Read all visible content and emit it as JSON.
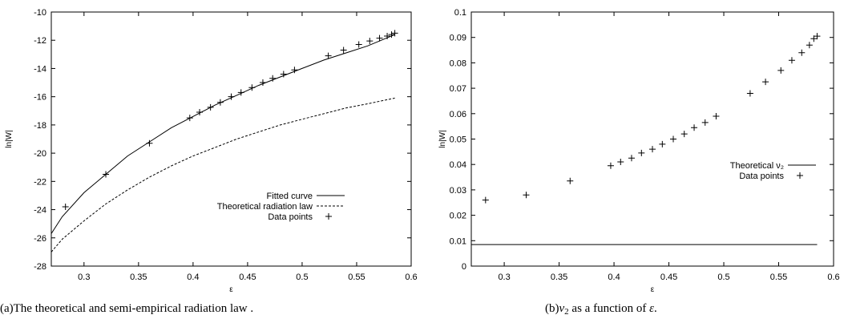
{
  "chart_data": [
    {
      "type": "line",
      "title": "",
      "xlabel": "ε",
      "ylabel": "ln|W|",
      "xlim": [
        0.27,
        0.6
      ],
      "ylim": [
        -28,
        -10
      ],
      "xticks": [
        "0.3",
        "0.35",
        "0.4",
        "0.45",
        "0.5",
        "0.55",
        "0.6"
      ],
      "yticks": [
        "-28",
        "-26",
        "-24",
        "-22",
        "-20",
        "-18",
        "-16",
        "-14",
        "-12",
        "-10"
      ],
      "grid": false,
      "legend": "bottom-right",
      "series": [
        {
          "name": "Fitted curve",
          "style": "solid",
          "x": [
            0.27,
            0.28,
            0.3,
            0.32,
            0.34,
            0.36,
            0.38,
            0.4,
            0.42,
            0.44,
            0.46,
            0.48,
            0.5,
            0.52,
            0.54,
            0.56,
            0.585
          ],
          "y": [
            -25.7,
            -24.5,
            -22.8,
            -21.5,
            -20.2,
            -19.2,
            -18.2,
            -17.4,
            -16.6,
            -15.9,
            -15.2,
            -14.6,
            -14.0,
            -13.4,
            -12.9,
            -12.4,
            -11.6
          ]
        },
        {
          "name": "Theoretical radiation law",
          "style": "dashed",
          "x": [
            0.27,
            0.28,
            0.3,
            0.32,
            0.34,
            0.36,
            0.38,
            0.4,
            0.42,
            0.44,
            0.46,
            0.48,
            0.5,
            0.52,
            0.54,
            0.56,
            0.585
          ],
          "y": [
            -27.0,
            -26.1,
            -24.8,
            -23.6,
            -22.6,
            -21.7,
            -20.9,
            -20.2,
            -19.6,
            -19.0,
            -18.5,
            -18.0,
            -17.6,
            -17.2,
            -16.8,
            -16.5,
            -16.1
          ]
        },
        {
          "name": "Data points",
          "style": "points",
          "x": [
            0.283,
            0.32,
            0.36,
            0.397,
            0.406,
            0.416,
            0.425,
            0.435,
            0.444,
            0.454,
            0.464,
            0.473,
            0.483,
            0.493,
            0.524,
            0.538,
            0.552,
            0.562,
            0.571,
            0.578,
            0.582,
            0.585
          ],
          "y": [
            -23.8,
            -21.5,
            -19.3,
            -17.5,
            -17.1,
            -16.75,
            -16.4,
            -16.0,
            -15.7,
            -15.35,
            -15.0,
            -14.7,
            -14.4,
            -14.1,
            -13.1,
            -12.7,
            -12.3,
            -12.05,
            -11.85,
            -11.7,
            -11.6,
            -11.5
          ]
        }
      ]
    },
    {
      "type": "scatter",
      "title": "",
      "xlabel": "ε",
      "ylabel": "ln|W|",
      "xlim": [
        0.27,
        0.6
      ],
      "ylim": [
        0,
        0.1
      ],
      "xticks": [
        "0.3",
        "0.35",
        "0.4",
        "0.45",
        "0.5",
        "0.55",
        "0.6"
      ],
      "yticks": [
        "0",
        "0.01",
        "0.02",
        "0.03",
        "0.04",
        "0.05",
        "0.06",
        "0.07",
        "0.08",
        "0.09",
        "0.1"
      ],
      "grid": false,
      "legend": "center-right",
      "series": [
        {
          "name": "Theoretical ν₂",
          "style": "solid",
          "x": [
            0.27,
            0.585
          ],
          "y": [
            0.0085,
            0.0085
          ]
        },
        {
          "name": "Data points",
          "style": "points",
          "x": [
            0.283,
            0.32,
            0.36,
            0.397,
            0.406,
            0.416,
            0.425,
            0.435,
            0.444,
            0.454,
            0.464,
            0.473,
            0.483,
            0.493,
            0.524,
            0.538,
            0.552,
            0.562,
            0.571,
            0.578,
            0.582,
            0.585
          ],
          "y": [
            0.026,
            0.028,
            0.0335,
            0.0395,
            0.041,
            0.0425,
            0.0445,
            0.046,
            0.048,
            0.05,
            0.052,
            0.0545,
            0.0565,
            0.059,
            0.068,
            0.0725,
            0.077,
            0.081,
            0.084,
            0.087,
            0.0895,
            0.0905
          ]
        }
      ]
    }
  ],
  "captions": {
    "a": "(a)The theoretical and semi-empirical radiation law .",
    "b_prefix": "(b)",
    "b_symbol": "ν",
    "b_sub": "2",
    "b_suffix": " as a function of ",
    "b_eps": "ε",
    "b_end": "."
  }
}
